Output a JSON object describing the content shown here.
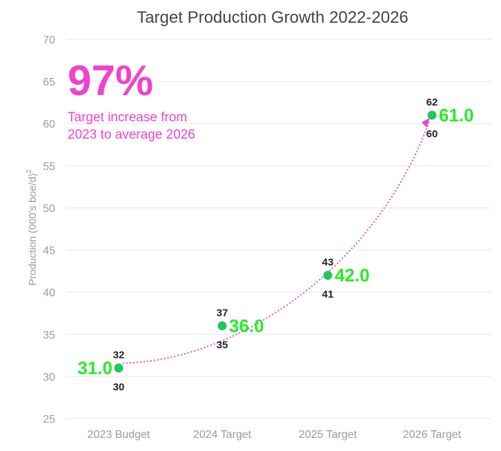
{
  "chart_data": {
    "type": "scatter",
    "title": "Target Production Growth 2022-2026",
    "ylabel": "Production (000's boe/d)",
    "ylabel_superscript": "2",
    "ylim": [
      25,
      70
    ],
    "yticks": [
      25,
      30,
      35,
      40,
      45,
      50,
      55,
      60,
      65,
      70
    ],
    "grid": true,
    "categories": [
      "2023 Budget",
      "2024 Target",
      "2025 Target",
      "2026 Target"
    ],
    "values": [
      31.0,
      36.0,
      42.0,
      61.0
    ],
    "value_labels": [
      "31.0",
      "36.0",
      "42.0",
      "61.0"
    ],
    "high": [
      32,
      37,
      43,
      62
    ],
    "low": [
      30,
      35,
      41,
      60
    ],
    "annotation": {
      "headline": "97%",
      "line1": "Target increase from",
      "line2": "2023 to average 2026"
    },
    "colors": {
      "point": "#22c55e",
      "value_text": "#22ee22",
      "range": "#8ee6a6",
      "trend": "#ee44cc",
      "annotation": "#ee44cc"
    }
  }
}
